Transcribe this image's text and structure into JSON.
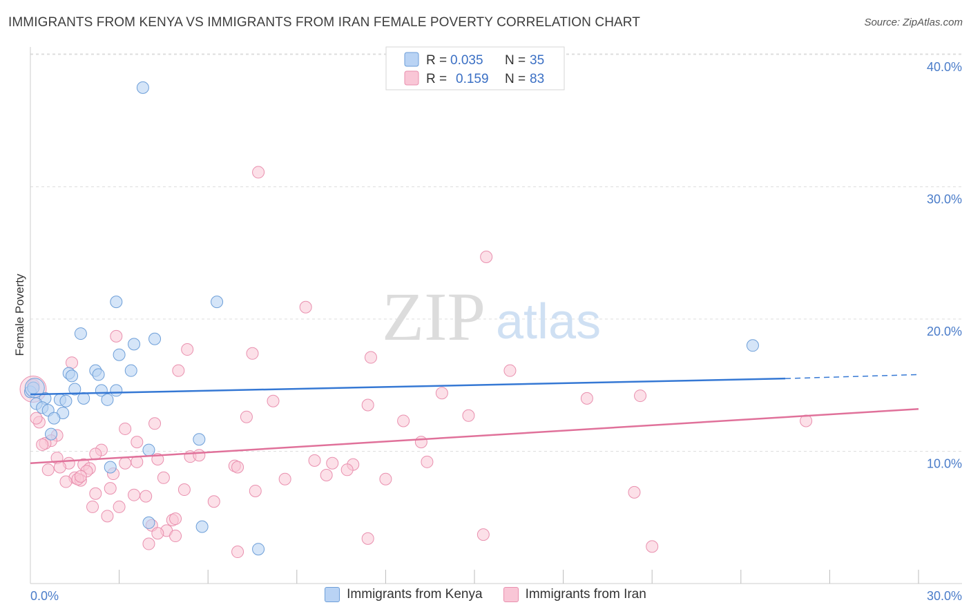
{
  "header": {
    "title": "IMMIGRANTS FROM KENYA VS IMMIGRANTS FROM IRAN FEMALE POVERTY CORRELATION CHART",
    "source": "Source: ZipAtlas.com"
  },
  "watermark": {
    "zip": "ZIP",
    "atlas": "atlas"
  },
  "colors": {
    "kenya_fill": "#b9d3f4",
    "kenya_stroke": "#6c9ed8",
    "kenya_line": "#3578d4",
    "iran_fill": "#f9c6d6",
    "iran_stroke": "#e98fae",
    "iran_line": "#e0719a",
    "grid": "#dddddd",
    "axis": "#cccccc"
  },
  "legend": {
    "rows": [
      {
        "r_label": "R =",
        "r_value": "0.035",
        "n_label": "N =",
        "n_value": "35"
      },
      {
        "r_label": "R =",
        "r_value": "0.159",
        "n_label": "N =",
        "n_value": "83"
      }
    ]
  },
  "chart_data": {
    "type": "scatter",
    "title": "IMMIGRANTS FROM KENYA VS IMMIGRANTS FROM IRAN FEMALE POVERTY CORRELATION CHART",
    "xlabel": "",
    "ylabel": "Female Poverty",
    "xlim": [
      0,
      30
    ],
    "ylim": [
      0,
      40
    ],
    "x_tick_labels": [
      "0.0%",
      "30.0%"
    ],
    "y_ticks": [
      10,
      20,
      30,
      40
    ],
    "y_tick_labels": [
      "10.0%",
      "20.0%",
      "30.0%",
      "40.0%"
    ],
    "grid": true,
    "series": [
      {
        "name": "Immigrants from Kenya",
        "R": 0.035,
        "N": 35,
        "trend": {
          "x0": 0,
          "y0": 14.3,
          "x1": 25.5,
          "y1": 15.5,
          "dash_to_x": 30,
          "dash_to_y": 15.8
        },
        "points": [
          [
            3.8,
            37.5
          ],
          [
            2.9,
            21.3
          ],
          [
            6.3,
            21.3
          ],
          [
            1.7,
            18.9
          ],
          [
            4.2,
            18.5
          ],
          [
            3.5,
            18.1
          ],
          [
            3.0,
            17.3
          ],
          [
            1.3,
            15.9
          ],
          [
            1.4,
            15.7
          ],
          [
            2.2,
            16.1
          ],
          [
            2.3,
            15.8
          ],
          [
            3.4,
            16.1
          ],
          [
            0.0,
            14.5
          ],
          [
            0.1,
            14.8
          ],
          [
            1.5,
            14.7
          ],
          [
            2.9,
            14.6
          ],
          [
            2.4,
            14.6
          ],
          [
            0.5,
            14.0
          ],
          [
            1.8,
            14.0
          ],
          [
            2.6,
            13.9
          ],
          [
            1.0,
            13.9
          ],
          [
            1.2,
            13.8
          ],
          [
            0.2,
            13.6
          ],
          [
            0.4,
            13.3
          ],
          [
            0.6,
            13.1
          ],
          [
            1.1,
            12.9
          ],
          [
            0.8,
            12.5
          ],
          [
            0.7,
            11.3
          ],
          [
            5.7,
            10.9
          ],
          [
            4.0,
            10.1
          ],
          [
            2.7,
            8.8
          ],
          [
            24.4,
            18.0
          ],
          [
            4.0,
            4.6
          ],
          [
            5.8,
            4.3
          ],
          [
            7.7,
            2.6
          ]
        ],
        "large_point": [
          0.1,
          14.8
        ]
      },
      {
        "name": "Immigrants from Iran",
        "R": 0.159,
        "N": 83,
        "trend": {
          "x0": 0,
          "y0": 9.1,
          "x1": 30,
          "y1": 13.2
        },
        "points": [
          [
            7.7,
            31.1
          ],
          [
            15.4,
            24.7
          ],
          [
            9.3,
            20.9
          ],
          [
            2.9,
            18.7
          ],
          [
            5.3,
            17.7
          ],
          [
            7.5,
            17.4
          ],
          [
            11.5,
            17.1
          ],
          [
            1.4,
            16.7
          ],
          [
            5.0,
            16.1
          ],
          [
            16.2,
            16.1
          ],
          [
            13.9,
            14.4
          ],
          [
            18.8,
            14.0
          ],
          [
            20.6,
            14.2
          ],
          [
            8.2,
            13.8
          ],
          [
            11.4,
            13.5
          ],
          [
            14.8,
            12.7
          ],
          [
            7.3,
            12.6
          ],
          [
            12.6,
            12.3
          ],
          [
            26.2,
            12.3
          ],
          [
            4.2,
            12.1
          ],
          [
            0.3,
            12.2
          ],
          [
            3.2,
            11.7
          ],
          [
            0.9,
            11.2
          ],
          [
            0.7,
            10.8
          ],
          [
            3.6,
            10.7
          ],
          [
            13.2,
            10.7
          ],
          [
            0.5,
            10.6
          ],
          [
            0.4,
            10.5
          ],
          [
            2.4,
            10.1
          ],
          [
            2.2,
            9.8
          ],
          [
            0.9,
            9.5
          ],
          [
            5.4,
            9.6
          ],
          [
            5.7,
            9.7
          ],
          [
            4.3,
            9.4
          ],
          [
            3.2,
            9.1
          ],
          [
            3.6,
            9.2
          ],
          [
            1.3,
            9.1
          ],
          [
            1.8,
            9.0
          ],
          [
            9.6,
            9.3
          ],
          [
            10.2,
            9.1
          ],
          [
            10.9,
            9.0
          ],
          [
            13.4,
            9.2
          ],
          [
            6.9,
            8.9
          ],
          [
            7.0,
            8.8
          ],
          [
            1.0,
            8.8
          ],
          [
            2.0,
            8.7
          ],
          [
            1.9,
            8.5
          ],
          [
            0.6,
            8.6
          ],
          [
            10.7,
            8.6
          ],
          [
            2.8,
            8.3
          ],
          [
            1.5,
            8.0
          ],
          [
            10.0,
            8.2
          ],
          [
            1.7,
            7.8
          ],
          [
            1.2,
            7.7
          ],
          [
            1.6,
            7.9
          ],
          [
            4.5,
            8.0
          ],
          [
            8.6,
            7.9
          ],
          [
            12.0,
            7.9
          ],
          [
            2.7,
            7.2
          ],
          [
            5.2,
            7.1
          ],
          [
            7.6,
            7.0
          ],
          [
            20.4,
            6.9
          ],
          [
            2.2,
            6.8
          ],
          [
            3.5,
            6.7
          ],
          [
            3.9,
            6.6
          ],
          [
            6.2,
            6.2
          ],
          [
            2.1,
            5.8
          ],
          [
            3.0,
            5.8
          ],
          [
            2.6,
            5.1
          ],
          [
            4.8,
            4.8
          ],
          [
            4.9,
            4.9
          ],
          [
            4.1,
            4.4
          ],
          [
            4.6,
            4.0
          ],
          [
            4.3,
            3.8
          ],
          [
            4.9,
            3.6
          ],
          [
            15.3,
            3.7
          ],
          [
            11.4,
            3.4
          ],
          [
            4.0,
            3.0
          ],
          [
            21.0,
            2.8
          ],
          [
            7.0,
            2.4
          ],
          [
            0.1,
            15.0
          ],
          [
            0.2,
            12.5
          ],
          [
            1.7,
            8.1
          ]
        ],
        "large_point": [
          0.0,
          14.7
        ]
      }
    ]
  },
  "bottom_legend": {
    "kenya": "Immigrants from Kenya",
    "iran": "Immigrants from Iran"
  }
}
